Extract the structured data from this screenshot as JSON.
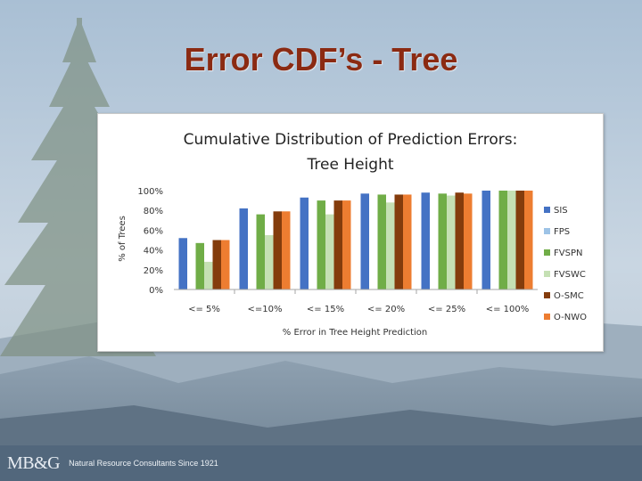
{
  "slide": {
    "title": "Error CDF’s - Tree",
    "footer_logo": "MB&G",
    "footer_tagline": "Natural Resource Consultants Since 1921"
  },
  "colors": {
    "title": "#8b2a12",
    "SIS": "#4472c4",
    "FPS": "#9dc3e6",
    "FVSPN": "#70ad47",
    "FVSWC": "#c5e0b4",
    "O-SMC": "#843c0c",
    "O-NWO": "#ed7d31"
  },
  "chart_data": {
    "type": "bar",
    "title": "Cumulative Distribution of Prediction Errors: Tree Height",
    "xlabel": "% Error in Tree Height Prediction",
    "ylabel": "% of Trees",
    "categories": [
      "<= 5%",
      "<=10%",
      "<= 15%",
      "<= 20%",
      "<= 25%",
      "<= 100%"
    ],
    "ylim": [
      0,
      100
    ],
    "yticks": [
      "0%",
      "20%",
      "40%",
      "60%",
      "80%",
      "100%"
    ],
    "legend_position": "right",
    "grid": false,
    "series": [
      {
        "name": "SIS",
        "values": [
          52,
          82,
          93,
          97,
          98,
          100
        ]
      },
      {
        "name": "FPS",
        "values": [
          0,
          0,
          0,
          0,
          0,
          0
        ]
      },
      {
        "name": "FVSPN",
        "values": [
          47,
          76,
          90,
          96,
          97,
          100
        ]
      },
      {
        "name": "FVSWC",
        "values": [
          28,
          55,
          76,
          88,
          95,
          100
        ]
      },
      {
        "name": "O-SMC",
        "values": [
          50,
          79,
          90,
          96,
          98,
          100
        ]
      },
      {
        "name": "O-NWO",
        "values": [
          50,
          79,
          90,
          96,
          97,
          100
        ]
      }
    ]
  }
}
